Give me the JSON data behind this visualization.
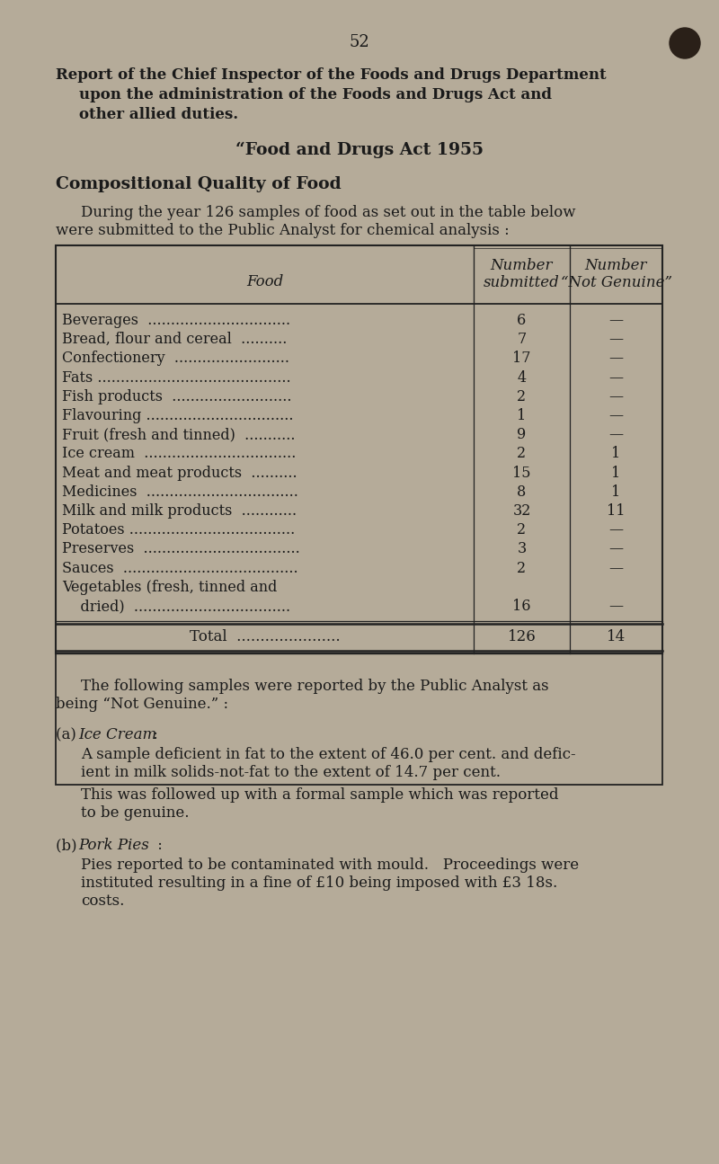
{
  "bg_color": "#b5ab99",
  "text_color": "#1a1a1a",
  "page_number": "52",
  "title_line1": "Report of the Chief Inspector of the Foods and Drugs Department",
  "title_line2": "upon the administration of the Foods and Drugs Act and",
  "title_line3": "other allied duties.",
  "subtitle": "“Food and Drugs Act 1955",
  "section_title": "Compositional Quality of Food",
  "intro_text_line1": "During the year 126 samples of food as set out in the table below",
  "intro_text_line2": "were submitted to the Public Analyst for chemical analysis :",
  "col_header_food": "Food",
  "col_header_num": "Number",
  "col_header_sub": "submitted",
  "col_header_notnum": "Number",
  "col_header_notgen": "“Not Genuine”",
  "table_rows": [
    [
      "Beverages  ...............................",
      "6",
      "—"
    ],
    [
      "Bread, flour and cereal  ..........",
      "7",
      "—"
    ],
    [
      "Confectionery  .........................",
      "17",
      "—"
    ],
    [
      "Fats ..........................................",
      "4",
      "—"
    ],
    [
      "Fish products  ..........................",
      "2",
      "—"
    ],
    [
      "Flavouring ................................",
      "1",
      "—"
    ],
    [
      "Fruit (fresh and tinned)  ...........",
      "9",
      "—"
    ],
    [
      "Ice cream  .................................",
      "2",
      "1"
    ],
    [
      "Meat and meat products  ..........",
      "15",
      "1"
    ],
    [
      "Medicines  .................................",
      "8",
      "1"
    ],
    [
      "Milk and milk products  ............",
      "32",
      "11"
    ],
    [
      "Potatoes ....................................",
      "2",
      "—"
    ],
    [
      "Preserves  ..................................",
      "3",
      "—"
    ],
    [
      "Sauces  ......................................",
      "2",
      "—"
    ],
    [
      "Vegetables (fresh, tinned and",
      "",
      ""
    ],
    [
      "    dried)  ..................................",
      "16",
      "—"
    ]
  ],
  "total_label": "Total  ......................",
  "total_submitted": "126",
  "total_not_genuine": "14",
  "follow_text1": "The following samples were reported by the Public Analyst as",
  "follow_text2": "being “Not Genuine.” :",
  "sec_a_prefix": "(a) ",
  "sec_a_title": "Ice Cream",
  "sec_a_suffix": " :",
  "sec_a_p1l1": "A sample deficient in fat to the extent of 46.0 per cent. and defic-",
  "sec_a_p1l2": "ient in milk solids-not-fat to the extent of 14.7 per cent.",
  "sec_a_p2l1": "This was followed up with a formal sample which was reported",
  "sec_a_p2l2": "to be genuine.",
  "sec_b_prefix": "(b) ",
  "sec_b_title": "Pork Pies",
  "sec_b_suffix": " :",
  "sec_b_p1l1": "Pies reported to be contaminated with mould.   Proceedings were",
  "sec_b_p1l2": "instituted resulting in a fine of £10 being imposed with £3 18s.",
  "sec_b_p1l3": "costs.",
  "hole_color": "#2a2018"
}
